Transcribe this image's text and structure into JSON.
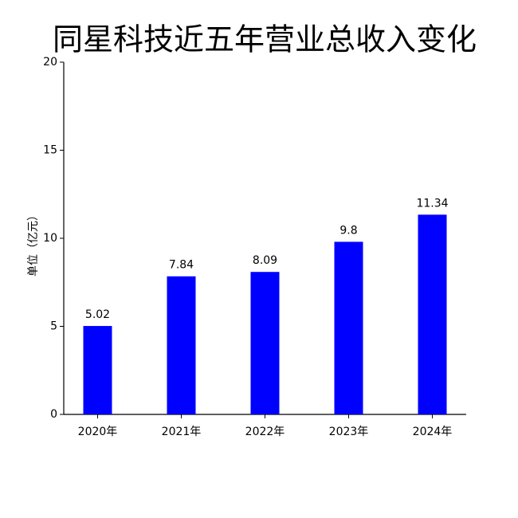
{
  "chart_data": {
    "type": "bar",
    "title": "同星科技近五年营业总收入变化",
    "y_label": "单位（亿元）",
    "categories": [
      "2020年",
      "2021年",
      "2022年",
      "2023年",
      "2024年"
    ],
    "values": [
      5.02,
      7.84,
      8.09,
      9.8,
      11.34
    ],
    "color": "#0000ff",
    "ylim": [
      0,
      20
    ],
    "yticks": [
      0,
      5,
      10,
      15,
      20
    ],
    "grid": false
  }
}
